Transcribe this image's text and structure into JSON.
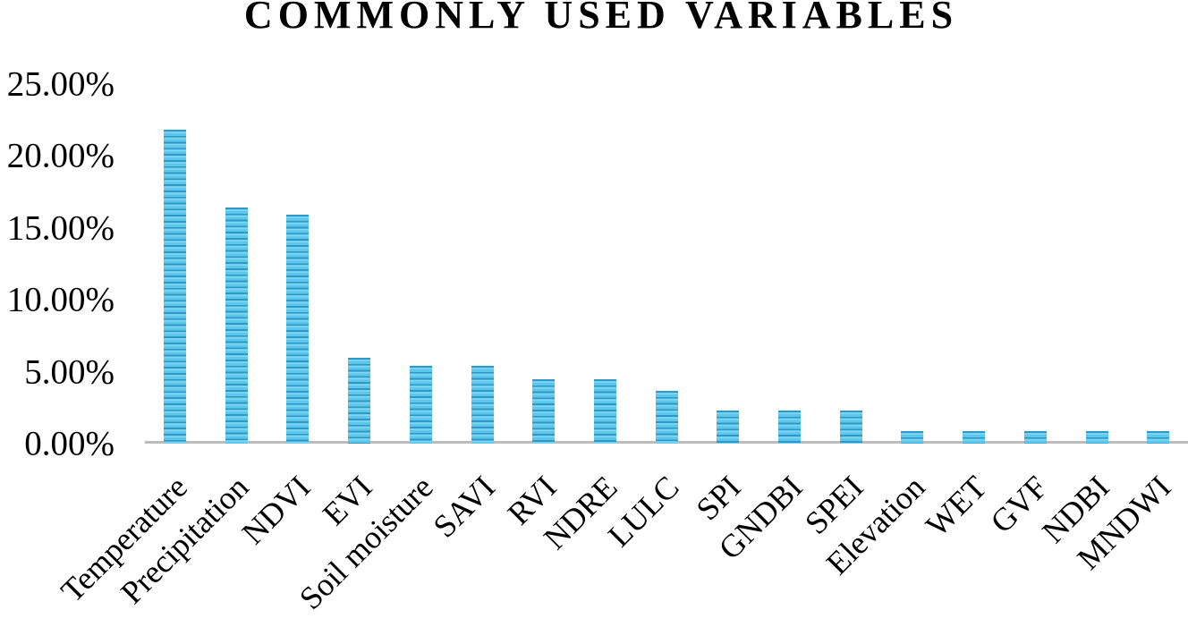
{
  "chart_data": {
    "type": "bar",
    "title": "COMMONLY USED VARIABLES",
    "categories": [
      "Temperature",
      "Precipitation",
      "NDVI",
      "EVI",
      "Soil moisture",
      "SAVI",
      "RVI",
      "NDRE",
      "LULC",
      "SPI",
      "GNDBI",
      "SPEI",
      "Elevation",
      "WET",
      "GVF",
      "NDBI",
      "MNDWI"
    ],
    "values": [
      21.8,
      16.4,
      15.9,
      6.0,
      5.4,
      5.4,
      4.5,
      4.5,
      3.7,
      2.3,
      2.3,
      2.3,
      0.9,
      0.9,
      0.9,
      0.9,
      0.9
    ],
    "unit": "%",
    "xlabel": "",
    "ylabel": "",
    "ylim": [
      0,
      25
    ],
    "ytick_values": [
      0,
      5,
      10,
      15,
      20,
      25
    ],
    "ytick_labels": [
      "0.00%",
      "5.00%",
      "10.00%",
      "15.00%",
      "20.00%",
      "25.00%"
    ],
    "grid": false,
    "legend_position": "none",
    "bar_pattern": "horizontal-stripes",
    "x_label_rotation_deg": -45,
    "colors": {
      "bar_stripe_light": "#5CC7EB",
      "bar_stripe_highlight": "#8BD9F4",
      "bar_stripe_dark": "#2E99C6",
      "axis_line": "#BCBCBC",
      "text": "#000000",
      "background": "#FFFFFF"
    }
  }
}
